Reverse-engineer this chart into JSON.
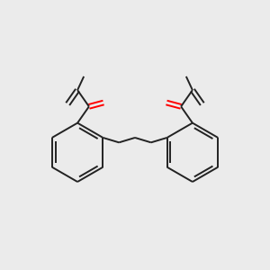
{
  "background_color": "#ebebeb",
  "bond_color": "#222222",
  "oxygen_color": "#ff0000",
  "line_width": 1.4,
  "fig_width": 3.0,
  "fig_height": 3.0,
  "dpi": 100,
  "xlim": [
    0,
    10
  ],
  "ylim": [
    0,
    10
  ]
}
